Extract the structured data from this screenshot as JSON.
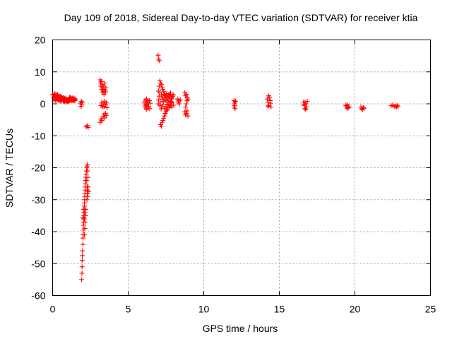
{
  "chart_data": {
    "type": "scatter",
    "title": "Day 109 of 2018, Sidereal Day-to-day VTEC variation (SDTVAR) for receiver ktia",
    "xlabel": "GPS time / hours",
    "ylabel": "SDTVAR / TECUs",
    "xlim": [
      0,
      25
    ],
    "ylim": [
      -60,
      20
    ],
    "xticks": [
      "0",
      "5",
      "10",
      "15",
      "20",
      "25"
    ],
    "yticks": [
      "-60",
      "-50",
      "-40",
      "-30",
      "-20",
      "-10",
      "0",
      "10",
      "20"
    ],
    "grid": true,
    "marker": "plus",
    "series": [
      {
        "name": "SDTVAR",
        "color": "#ff0000",
        "points": [
          [
            0.02,
            3.0
          ],
          [
            0.05,
            2.0
          ],
          [
            0.08,
            1.2
          ],
          [
            0.1,
            2.6
          ],
          [
            0.12,
            1.5
          ],
          [
            0.15,
            3.2
          ],
          [
            0.18,
            2.2
          ],
          [
            0.2,
            1.0
          ],
          [
            0.22,
            2.8
          ],
          [
            0.25,
            1.8
          ],
          [
            0.28,
            2.4
          ],
          [
            0.3,
            1.2
          ],
          [
            0.33,
            2.9
          ],
          [
            0.35,
            1.6
          ],
          [
            0.38,
            2.2
          ],
          [
            0.4,
            1.0
          ],
          [
            0.42,
            2.6
          ],
          [
            0.45,
            1.4
          ],
          [
            0.48,
            2.0
          ],
          [
            0.5,
            0.8
          ],
          [
            0.52,
            2.3
          ],
          [
            0.55,
            1.5
          ],
          [
            0.58,
            1.9
          ],
          [
            0.6,
            0.9
          ],
          [
            0.62,
            2.1
          ],
          [
            0.65,
            1.3
          ],
          [
            0.68,
            1.7
          ],
          [
            0.7,
            0.8
          ],
          [
            0.72,
            2.0
          ],
          [
            0.75,
            1.1
          ],
          [
            0.78,
            1.6
          ],
          [
            0.8,
            0.7
          ],
          [
            0.82,
            1.8
          ],
          [
            0.85,
            1.0
          ],
          [
            0.88,
            1.4
          ],
          [
            0.9,
            0.6
          ],
          [
            0.92,
            1.5
          ],
          [
            0.95,
            0.9
          ],
          [
            0.98,
            1.2
          ],
          [
            1.0,
            0.7
          ],
          [
            1.02,
            1.3
          ],
          [
            1.05,
            0.8
          ],
          [
            1.08,
            1.5
          ],
          [
            1.1,
            0.9
          ],
          [
            1.12,
            1.9
          ],
          [
            1.15,
            1.1
          ],
          [
            1.18,
            2.1
          ],
          [
            1.2,
            1.3
          ],
          [
            1.22,
            1.8
          ],
          [
            1.25,
            1.0
          ],
          [
            1.28,
            1.6
          ],
          [
            1.3,
            1.2
          ],
          [
            1.33,
            1.9
          ],
          [
            1.35,
            0.9
          ],
          [
            1.38,
            1.4
          ],
          [
            1.4,
            1.1
          ],
          [
            1.42,
            1.7
          ],
          [
            1.45,
            1.3
          ],
          [
            1.48,
            1.0
          ],
          [
            1.5,
            1.5
          ],
          [
            1.85,
            0.2
          ],
          [
            1.88,
            -0.8
          ],
          [
            1.9,
            0.8
          ],
          [
            1.92,
            -0.3
          ],
          [
            1.95,
            0.4
          ],
          [
            2.22,
            -7.2
          ],
          [
            2.3,
            -6.8
          ],
          [
            2.35,
            -7.4
          ],
          [
            1.92,
            -55
          ],
          [
            1.94,
            -53
          ],
          [
            1.95,
            -51
          ],
          [
            1.96,
            -49
          ],
          [
            1.97,
            -47.5
          ],
          [
            1.98,
            -46
          ],
          [
            2.0,
            -44
          ],
          [
            2.01,
            -42
          ],
          [
            2.02,
            -41
          ],
          [
            2.03,
            -39.5
          ],
          [
            2.04,
            -38
          ],
          [
            2.05,
            -37
          ],
          [
            2.06,
            -36
          ],
          [
            2.07,
            -35
          ],
          [
            2.08,
            -34
          ],
          [
            2.09,
            -33
          ],
          [
            2.1,
            -32
          ],
          [
            2.11,
            -31
          ],
          [
            2.12,
            -30
          ],
          [
            2.13,
            -29
          ],
          [
            2.14,
            -28
          ],
          [
            2.15,
            -27
          ],
          [
            2.16,
            -26
          ],
          [
            2.17,
            -25
          ],
          [
            2.18,
            -24
          ],
          [
            2.2,
            -23
          ],
          [
            2.22,
            -22
          ],
          [
            2.24,
            -21
          ],
          [
            2.26,
            -20
          ],
          [
            2.28,
            -19.5
          ],
          [
            2.3,
            -19
          ],
          [
            2.25,
            -24
          ],
          [
            2.28,
            -26
          ],
          [
            2.3,
            -28
          ],
          [
            2.27,
            -30
          ],
          [
            2.2,
            -33
          ],
          [
            2.18,
            -35
          ],
          [
            2.15,
            -37
          ],
          [
            2.13,
            -39
          ],
          [
            2.1,
            -41
          ],
          [
            2.32,
            -21
          ],
          [
            2.34,
            -23
          ],
          [
            2.35,
            -26
          ],
          [
            2.33,
            -29
          ],
          [
            2.3,
            -27
          ],
          [
            2.36,
            -27.5
          ],
          [
            2.0,
            -35.5
          ],
          [
            2.05,
            -33
          ],
          [
            2.1,
            -36
          ],
          [
            2.12,
            -34
          ],
          [
            3.15,
            7.5
          ],
          [
            3.18,
            6.5
          ],
          [
            3.2,
            5.5
          ],
          [
            3.22,
            7.0
          ],
          [
            3.25,
            4.5
          ],
          [
            3.28,
            6.0
          ],
          [
            3.3,
            3.5
          ],
          [
            3.32,
            5.0
          ],
          [
            3.35,
            4.0
          ],
          [
            3.38,
            5.5
          ],
          [
            3.4,
            3.0
          ],
          [
            3.42,
            4.5
          ],
          [
            3.45,
            6.5
          ],
          [
            3.48,
            3.5
          ],
          [
            3.5,
            4.0
          ],
          [
            3.52,
            5.0
          ],
          [
            3.2,
            -0.5
          ],
          [
            3.25,
            0.5
          ],
          [
            3.3,
            -1.0
          ],
          [
            3.35,
            0.0
          ],
          [
            3.4,
            -0.8
          ],
          [
            3.45,
            0.8
          ],
          [
            3.5,
            -0.3
          ],
          [
            3.55,
            0.3
          ],
          [
            3.6,
            -1.2
          ],
          [
            3.15,
            -5.8
          ],
          [
            3.2,
            -4.8
          ],
          [
            3.25,
            -5.2
          ],
          [
            3.35,
            -4.0
          ],
          [
            3.4,
            -3.2
          ],
          [
            3.45,
            -4.4
          ],
          [
            3.5,
            -3.0
          ],
          [
            3.55,
            -3.6
          ],
          [
            6.05,
            0.5
          ],
          [
            6.1,
            -1.0
          ],
          [
            6.12,
            1.2
          ],
          [
            6.15,
            -0.5
          ],
          [
            6.18,
            0.0
          ],
          [
            6.2,
            -1.8
          ],
          [
            6.22,
            1.5
          ],
          [
            6.25,
            -0.2
          ],
          [
            6.28,
            0.8
          ],
          [
            6.3,
            -1.4
          ],
          [
            6.32,
            0.3
          ],
          [
            6.35,
            -0.8
          ],
          [
            6.4,
            1.0
          ],
          [
            6.42,
            -1.5
          ],
          [
            6.45,
            0.2
          ],
          [
            6.98,
            15.2
          ],
          [
            7.02,
            14.0
          ],
          [
            7.05,
            13.5
          ],
          [
            7.1,
            7.2
          ],
          [
            7.15,
            6.5
          ],
          [
            7.2,
            6.0
          ],
          [
            7.05,
            5.5
          ],
          [
            7.25,
            5.0
          ],
          [
            7.3,
            4.5
          ],
          [
            7.0,
            4.0
          ],
          [
            7.35,
            3.8
          ],
          [
            7.1,
            3.5
          ],
          [
            7.4,
            3.0
          ],
          [
            7.2,
            2.8
          ],
          [
            7.5,
            2.5
          ],
          [
            7.3,
            2.0
          ],
          [
            7.6,
            1.8
          ],
          [
            7.4,
            1.5
          ],
          [
            7.7,
            1.2
          ],
          [
            7.5,
            1.0
          ],
          [
            7.8,
            0.8
          ],
          [
            7.6,
            0.5
          ],
          [
            7.9,
            0.3
          ],
          [
            7.0,
            0.0
          ],
          [
            7.1,
            -0.5
          ],
          [
            7.2,
            -1.0
          ],
          [
            7.3,
            -0.3
          ],
          [
            7.4,
            -1.4
          ],
          [
            7.5,
            -0.8
          ],
          [
            7.6,
            -0.2
          ],
          [
            7.7,
            -1.2
          ],
          [
            7.8,
            -0.6
          ],
          [
            7.9,
            -1.0
          ],
          [
            8.0,
            -0.4
          ],
          [
            7.15,
            -6.5
          ],
          [
            7.2,
            -7.0
          ],
          [
            7.25,
            -5.8
          ],
          [
            7.3,
            -5.2
          ],
          [
            7.35,
            -4.5
          ],
          [
            7.4,
            -3.8
          ],
          [
            7.45,
            -3.0
          ],
          [
            7.5,
            -2.5
          ],
          [
            7.55,
            -2.0
          ],
          [
            7.6,
            -1.6
          ],
          [
            7.65,
            2.2
          ],
          [
            7.7,
            2.6
          ],
          [
            7.75,
            3.0
          ],
          [
            7.8,
            3.4
          ],
          [
            7.85,
            2.0
          ],
          [
            7.9,
            1.6
          ],
          [
            7.95,
            2.4
          ],
          [
            8.0,
            2.8
          ],
          [
            7.25,
            1.5
          ],
          [
            7.35,
            0.8
          ],
          [
            7.45,
            2.6
          ],
          [
            7.55,
            3.2
          ],
          [
            7.65,
            0.5
          ],
          [
            7.75,
            -0.4
          ],
          [
            7.85,
            0.6
          ],
          [
            7.0,
            1.2
          ],
          [
            7.05,
            2.4
          ],
          [
            7.12,
            0.6
          ],
          [
            7.18,
            -1.6
          ],
          [
            8.25,
            1.5
          ],
          [
            8.3,
            0.5
          ],
          [
            8.35,
            1.0
          ],
          [
            8.4,
            0.0
          ],
          [
            8.45,
            1.2
          ],
          [
            8.75,
            3.5
          ],
          [
            8.8,
            2.5
          ],
          [
            8.85,
            3.0
          ],
          [
            8.9,
            2.0
          ],
          [
            8.95,
            1.5
          ],
          [
            8.75,
            -2.5
          ],
          [
            8.8,
            -3.5
          ],
          [
            8.85,
            -3.0
          ],
          [
            8.9,
            -2.2
          ],
          [
            8.95,
            -3.8
          ],
          [
            8.8,
            -1.0
          ],
          [
            8.85,
            0.0
          ],
          [
            8.9,
            1.0
          ],
          [
            12.0,
            1.0
          ],
          [
            12.02,
            0.0
          ],
          [
            12.05,
            -0.5
          ],
          [
            12.07,
            -1.5
          ],
          [
            12.1,
            0.8
          ],
          [
            12.0,
            -1.0
          ],
          [
            12.05,
            0.5
          ],
          [
            14.2,
            1.5
          ],
          [
            14.25,
            0.5
          ],
          [
            14.3,
            -0.5
          ],
          [
            14.35,
            2.0
          ],
          [
            14.4,
            1.0
          ],
          [
            14.45,
            -1.0
          ],
          [
            14.3,
            2.5
          ],
          [
            14.25,
            -0.8
          ],
          [
            14.4,
            0.2
          ],
          [
            16.6,
            0.5
          ],
          [
            16.65,
            -0.5
          ],
          [
            16.7,
            -1.5
          ],
          [
            16.75,
            0.0
          ],
          [
            16.8,
            -1.0
          ],
          [
            16.85,
            0.8
          ],
          [
            16.7,
            0.5
          ],
          [
            16.75,
            -1.8
          ],
          [
            16.65,
            -0.2
          ],
          [
            19.4,
            -0.5
          ],
          [
            19.45,
            -1.0
          ],
          [
            19.5,
            -1.5
          ],
          [
            19.55,
            -0.8
          ],
          [
            19.6,
            -1.2
          ],
          [
            19.5,
            -0.3
          ],
          [
            20.4,
            -1.0
          ],
          [
            20.45,
            -1.5
          ],
          [
            20.5,
            -1.8
          ],
          [
            20.55,
            -1.2
          ],
          [
            20.6,
            -1.4
          ],
          [
            22.4,
            -0.6
          ],
          [
            22.5,
            -0.4
          ],
          [
            22.6,
            -0.8
          ],
          [
            22.7,
            -0.7
          ],
          [
            22.75,
            -1.0
          ],
          [
            22.8,
            -0.5
          ],
          [
            22.85,
            -0.9
          ]
        ]
      }
    ]
  }
}
